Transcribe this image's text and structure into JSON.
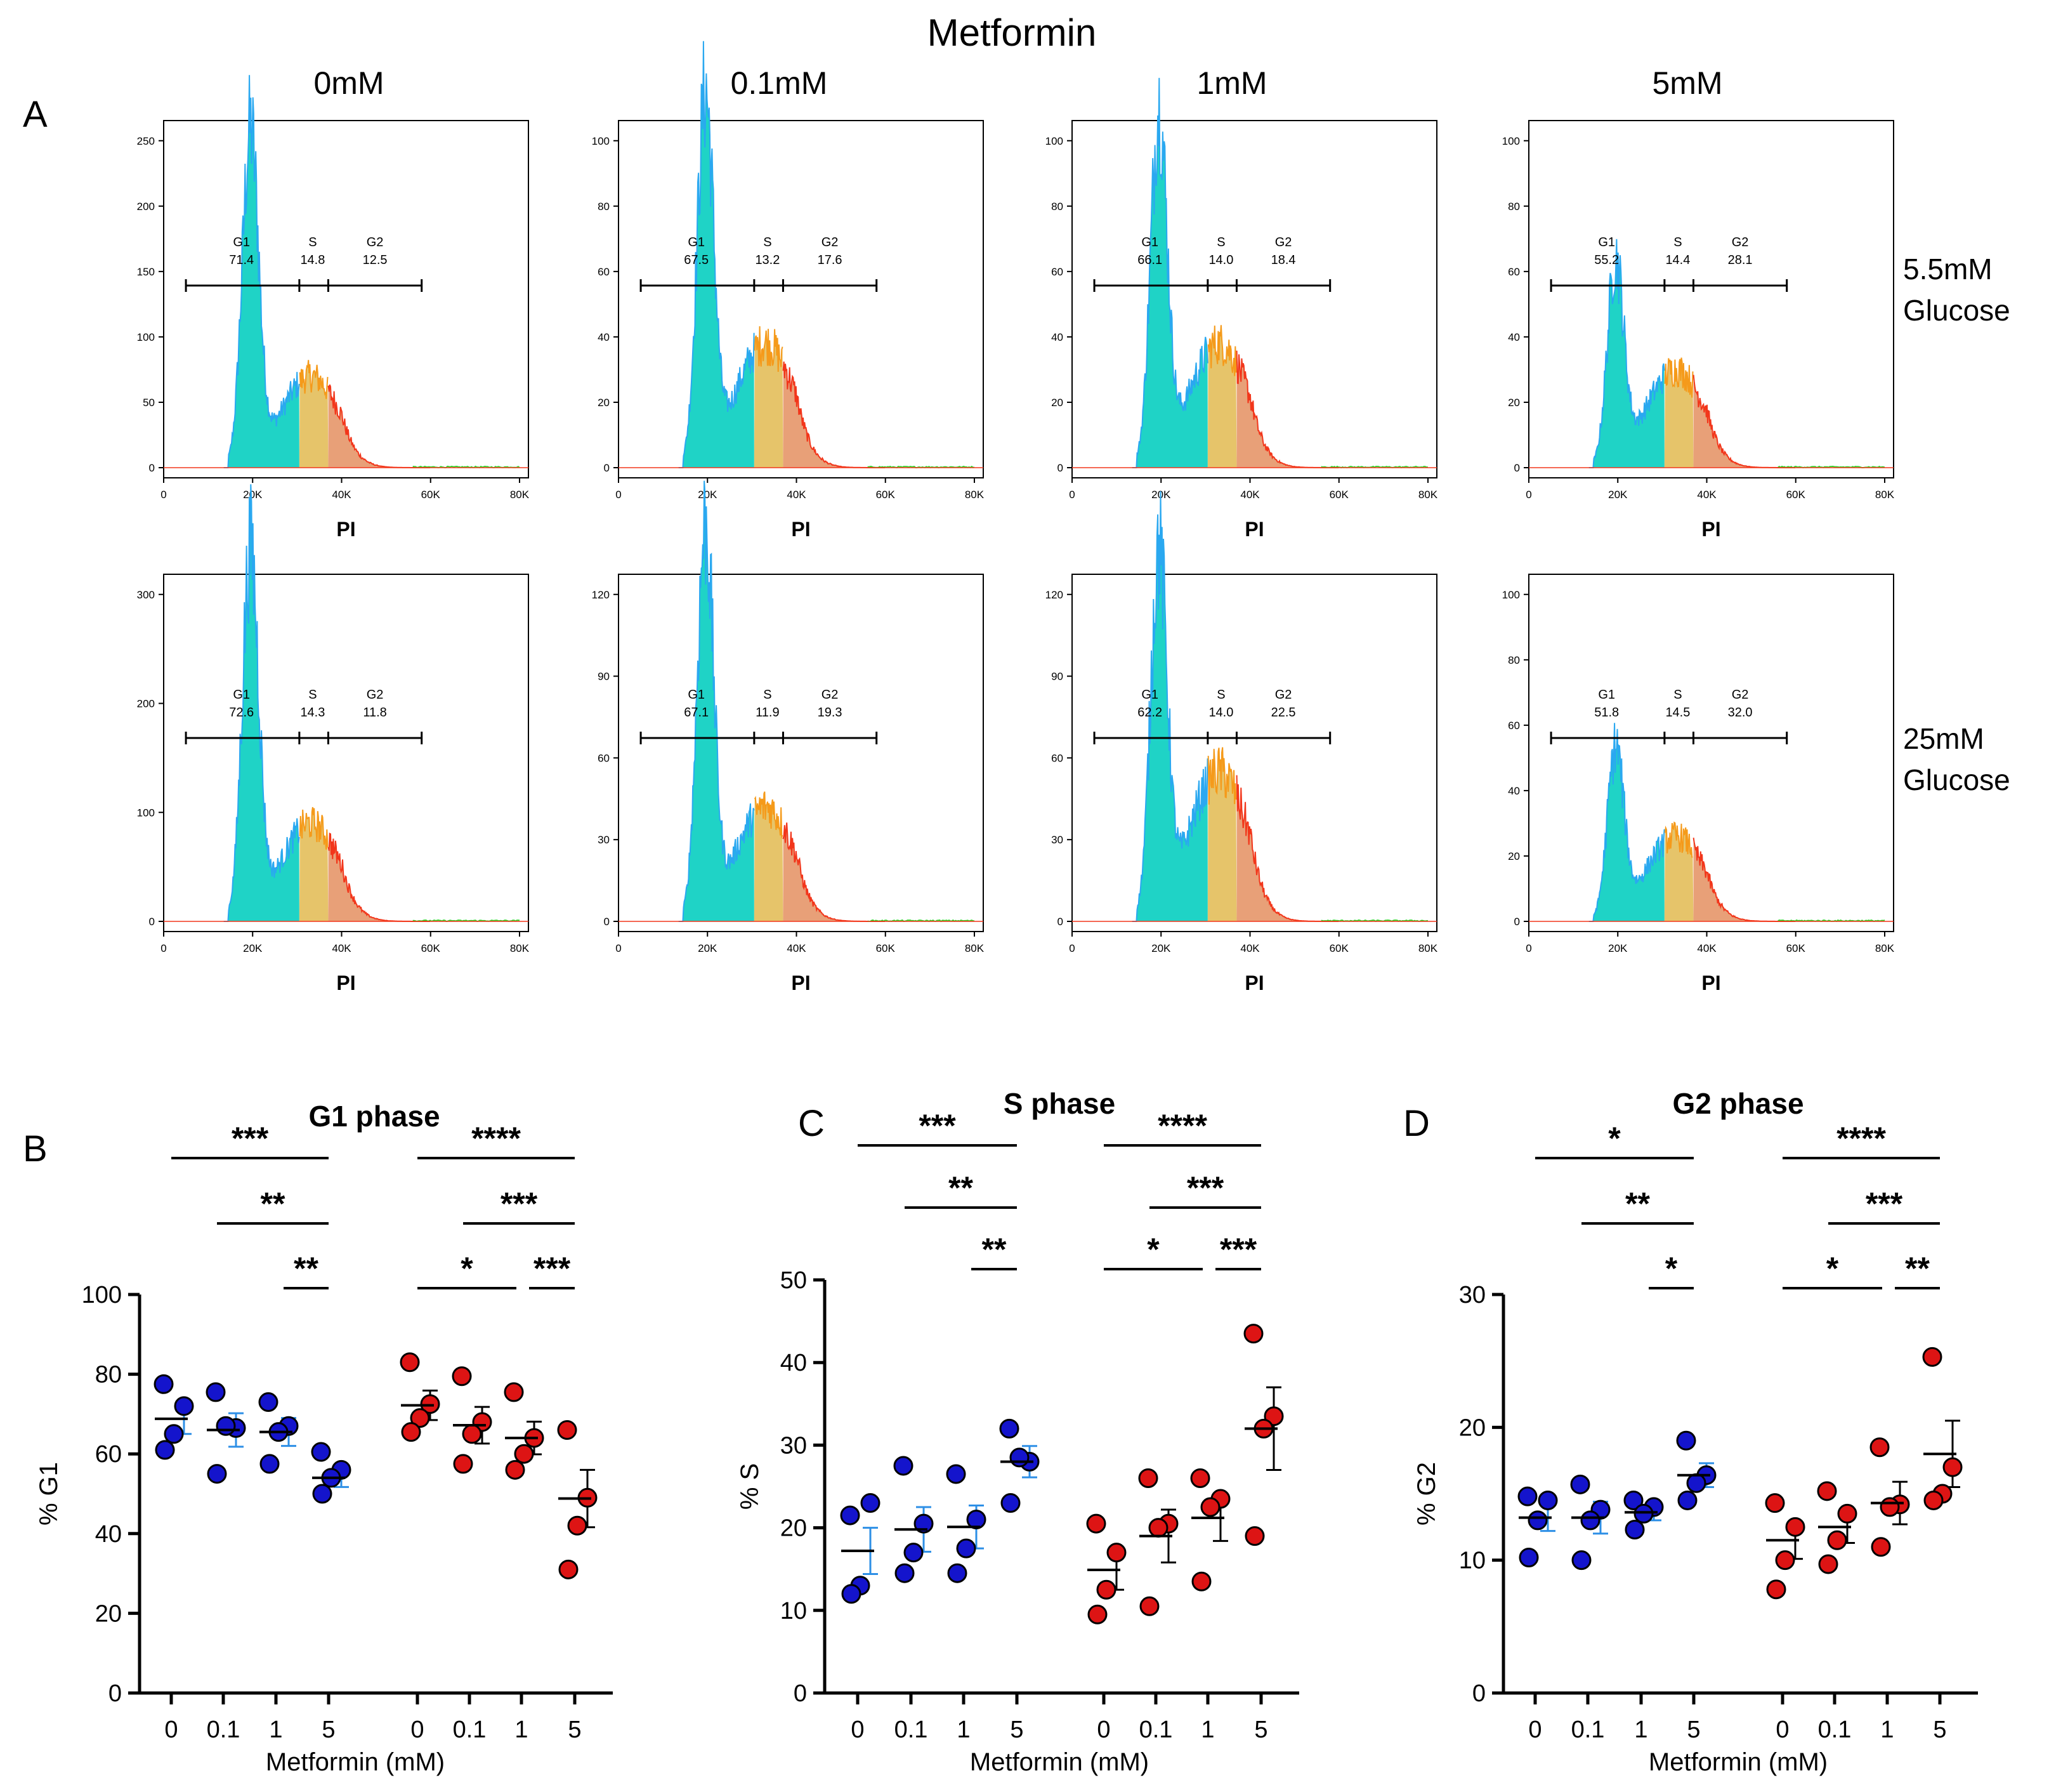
{
  "figure": {
    "main_title": "Metformin",
    "panel_a_letter": "A",
    "concentrations": [
      "0mM",
      "0.1mM",
      "1mM",
      "5mM"
    ],
    "conditions": [
      {
        "line1": "5.5mM",
        "line2": "Glucose"
      },
      {
        "line1": "25mM",
        "line2": "Glucose"
      }
    ],
    "hist_xlabel": "PI",
    "hist_xticks": [
      "0",
      "20K",
      "40K",
      "60K",
      "80K"
    ],
    "gate_labels": [
      "G1",
      "S",
      "G2"
    ],
    "colors": {
      "g1": "#1fd3c6",
      "g1_edge": "#2aa8f0",
      "s": "#e6c46a",
      "s_edge": "#f59a1a",
      "g2": "#e8a078",
      "g2_edge": "#f2361b",
      "tail": "#35d12a",
      "blue": "#1414cc",
      "red": "#dd1414",
      "sem_blue": "#2d8fe6"
    }
  },
  "chart_data": [
    {
      "type": "histogram",
      "row": "5.5mM Glucose",
      "conc": "0mM",
      "ymax": 250,
      "yticks": [
        0,
        50,
        100,
        150,
        200,
        250
      ],
      "gates": {
        "G1": "71.4",
        "S": "14.8",
        "G2": "12.5"
      },
      "peak": 250,
      "shoulder": 70
    },
    {
      "type": "histogram",
      "row": "5.5mM Glucose",
      "conc": "0.1mM",
      "ymax": 100,
      "yticks": [
        0,
        20,
        40,
        60,
        80,
        100
      ],
      "gates": {
        "G1": "67.5",
        "S": "13.2",
        "G2": "17.6"
      },
      "peak": 110,
      "shoulder": 38
    },
    {
      "type": "histogram",
      "row": "5.5mM Glucose",
      "conc": "1mM",
      "ymax": 100,
      "yticks": [
        0,
        20,
        40,
        60,
        80,
        100
      ],
      "gates": {
        "G1": "66.1",
        "S": "14.0",
        "G2": "18.4"
      },
      "peak": 105,
      "shoulder": 38
    },
    {
      "type": "histogram",
      "row": "5.5mM Glucose",
      "conc": "5mM",
      "ymax": 100,
      "yticks": [
        0,
        20,
        40,
        60,
        80,
        100
      ],
      "gates": {
        "G1": "55.2",
        "S": "14.4",
        "G2": "28.1"
      },
      "peak": 60,
      "shoulder": 30
    },
    {
      "type": "histogram",
      "row": "25mM Glucose",
      "conc": "0mM",
      "ymax": 300,
      "yticks": [
        0,
        100,
        200,
        300
      ],
      "gates": {
        "G1": "72.6",
        "S": "14.3",
        "G2": "11.8"
      },
      "peak": 330,
      "shoulder": 90
    },
    {
      "type": "histogram",
      "row": "25mM Glucose",
      "conc": "0.1mM",
      "ymax": 120,
      "yticks": [
        0,
        30,
        60,
        90,
        120
      ],
      "gates": {
        "G1": "67.1",
        "S": "11.9",
        "G2": "19.3"
      },
      "peak": 140,
      "shoulder": 42
    },
    {
      "type": "histogram",
      "row": "25mM Glucose",
      "conc": "1mM",
      "ymax": 120,
      "yticks": [
        0,
        30,
        60,
        90,
        120
      ],
      "gates": {
        "G1": "62.2",
        "S": "14.0",
        "G2": "22.5"
      },
      "peak": 130,
      "shoulder": 55
    },
    {
      "type": "histogram",
      "row": "25mM Glucose",
      "conc": "5mM",
      "ymax": 100,
      "yticks": [
        0,
        20,
        40,
        60,
        80,
        100
      ],
      "gates": {
        "G1": "51.8",
        "S": "14.5",
        "G2": "32.0"
      },
      "peak": 50,
      "shoulder": 26
    },
    {
      "type": "scatter",
      "letter": "B",
      "title": "G1 phase",
      "ylabel": "% G1",
      "xlabel": "Metformin (mM)",
      "ylim": [
        0,
        100
      ],
      "yticks": [
        0,
        20,
        40,
        60,
        80,
        100
      ],
      "categories": [
        "0",
        "0.1",
        "1",
        "5",
        "0",
        "0.1",
        "1",
        "5"
      ],
      "groups": [
        {
          "glucose": "5.5mM",
          "color": "blue",
          "points": [
            [
              77.5,
              72,
              65,
              61
            ],
            [
              75.5,
              66.5,
              67,
              55
            ],
            [
              73,
              67,
              65.5,
              57.5
            ],
            [
              60.5,
              56,
              54,
              50
            ]
          ],
          "mean": [
            68.8,
            66,
            65.5,
            54
          ],
          "sem": [
            3.8,
            4.2,
            3.5,
            2.3
          ]
        },
        {
          "glucose": "25mM",
          "color": "red",
          "points": [
            [
              83,
              72.5,
              69,
              65.5
            ],
            [
              79.5,
              68,
              65,
              57.5
            ],
            [
              75.5,
              64,
              60,
              56
            ],
            [
              66,
              49,
              42,
              31
            ]
          ],
          "mean": [
            72.2,
            67.2,
            64,
            48.8
          ],
          "sem": [
            3.7,
            4.6,
            4.1,
            7.2
          ]
        }
      ],
      "significance": [
        {
          "group": 0,
          "from": 0,
          "to": 3,
          "label": "***"
        },
        {
          "group": 0,
          "from": 1,
          "to": 3,
          "label": "**"
        },
        {
          "group": 0,
          "from": 2,
          "to": 3,
          "label": "**"
        },
        {
          "group": 1,
          "from": 0,
          "to": 3,
          "label": "****"
        },
        {
          "group": 1,
          "from": 1,
          "to": 3,
          "label": "***"
        },
        {
          "group": 1,
          "from": 0,
          "to": 2,
          "label": "*"
        },
        {
          "group": 1,
          "from": 2,
          "to": 3,
          "label": "***"
        }
      ]
    },
    {
      "type": "scatter",
      "letter": "C",
      "title": "S phase",
      "ylabel": "% S",
      "xlabel": "Metformin (mM)",
      "ylim": [
        0,
        50
      ],
      "yticks": [
        0,
        10,
        20,
        30,
        40,
        50
      ],
      "categories": [
        "0",
        "0.1",
        "1",
        "5",
        "0",
        "0.1",
        "1",
        "5"
      ],
      "groups": [
        {
          "glucose": "5.5mM",
          "color": "blue",
          "points": [
            [
              21.5,
              23,
              13,
              12
            ],
            [
              27.5,
              20.5,
              17,
              14.5
            ],
            [
              26.5,
              21,
              17.5,
              14.5
            ],
            [
              32,
              28,
              28.5,
              23
            ]
          ],
          "mean": [
            17.2,
            19.8,
            20.1,
            28
          ],
          "sem": [
            2.8,
            2.7,
            2.6,
            1.9
          ]
        },
        {
          "glucose": "25mM",
          "color": "red",
          "points": [
            [
              20.5,
              17,
              12.5,
              9.5
            ],
            [
              26,
              20.5,
              20,
              10.5
            ],
            [
              26,
              23.5,
              22.5,
              13.5
            ],
            [
              43.5,
              33.5,
              32,
              19
            ]
          ],
          "mean": [
            14.9,
            19,
            21.2,
            32
          ],
          "sem": [
            2.4,
            3.2,
            2.8,
            5
          ]
        }
      ],
      "significance": [
        {
          "group": 0,
          "from": 0,
          "to": 3,
          "label": "***"
        },
        {
          "group": 0,
          "from": 1,
          "to": 3,
          "label": "**"
        },
        {
          "group": 0,
          "from": 2,
          "to": 3,
          "label": "**"
        },
        {
          "group": 1,
          "from": 0,
          "to": 3,
          "label": "****"
        },
        {
          "group": 1,
          "from": 1,
          "to": 3,
          "label": "***"
        },
        {
          "group": 1,
          "from": 0,
          "to": 2,
          "label": "*"
        },
        {
          "group": 1,
          "from": 2,
          "to": 3,
          "label": "***"
        }
      ]
    },
    {
      "type": "scatter",
      "letter": "D",
      "title": "G2 phase",
      "ylabel": "% G2",
      "xlabel": "Metformin (mM)",
      "ylim": [
        0,
        30
      ],
      "yticks": [
        0,
        10,
        20,
        30
      ],
      "categories": [
        "0",
        "0.1",
        "1",
        "5",
        "0",
        "0.1",
        "1",
        "5"
      ],
      "groups": [
        {
          "glucose": "5.5mM",
          "color": "blue",
          "points": [
            [
              14.8,
              14.5,
              13,
              10.2
            ],
            [
              15.7,
              13.8,
              13,
              10
            ],
            [
              14.5,
              14,
              13.5,
              12.3
            ],
            [
              19,
              16.4,
              15.8,
              14.5
            ]
          ],
          "mean": [
            13.2,
            13.2,
            13.6,
            16.4
          ],
          "sem": [
            1.0,
            1.2,
            0.6,
            0.9
          ]
        },
        {
          "glucose": "25mM",
          "color": "red",
          "points": [
            [
              14.3,
              12.5,
              10,
              7.8
            ],
            [
              15.2,
              13.5,
              11.5,
              9.7
            ],
            [
              18.5,
              14.2,
              14,
              11
            ],
            [
              25.3,
              17,
              15,
              14.5
            ]
          ],
          "mean": [
            11.5,
            12.5,
            14.3,
            18
          ],
          "sem": [
            1.4,
            1.2,
            1.6,
            2.5
          ]
        }
      ],
      "significance": [
        {
          "group": 0,
          "from": 0,
          "to": 3,
          "label": "*"
        },
        {
          "group": 0,
          "from": 1,
          "to": 3,
          "label": "**"
        },
        {
          "group": 0,
          "from": 2,
          "to": 3,
          "label": "*"
        },
        {
          "group": 1,
          "from": 0,
          "to": 3,
          "label": "****"
        },
        {
          "group": 1,
          "from": 1,
          "to": 3,
          "label": "***"
        },
        {
          "group": 1,
          "from": 0,
          "to": 2,
          "label": "*"
        },
        {
          "group": 1,
          "from": 2,
          "to": 3,
          "label": "**"
        }
      ]
    }
  ]
}
